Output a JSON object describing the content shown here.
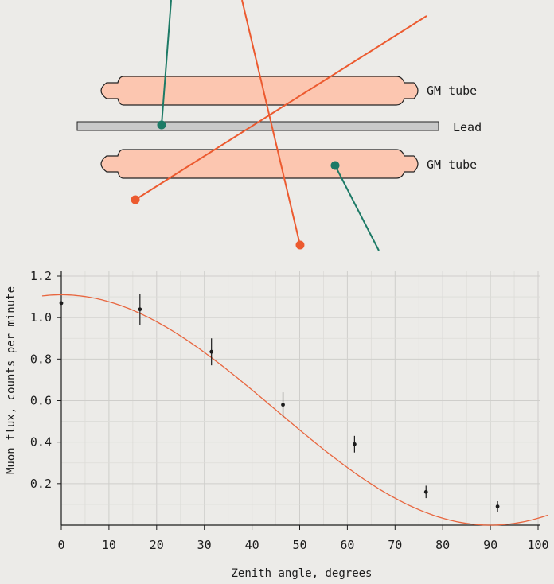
{
  "diagram": {
    "labels": {
      "tube_top": "GM tube",
      "lead": "Lead",
      "tube_bottom": "GM tube"
    },
    "colors": {
      "tube_fill": "#fcc6b0",
      "tube_stroke": "#222222",
      "lead_fill": "#c9c9c9",
      "track_orange": "#ec5a2f",
      "track_green": "#1d7a66"
    }
  },
  "chart_data": {
    "type": "scatter",
    "xlabel": "Zenith angle, degrees",
    "ylabel": "Muon flux, counts per minute",
    "xlim": [
      0,
      102
    ],
    "ylim": [
      0,
      1.25
    ],
    "x_ticks": [
      0,
      10,
      20,
      30,
      40,
      50,
      60,
      70,
      80,
      90,
      100
    ],
    "y_ticks": [
      0.2,
      0.4,
      0.6,
      0.8,
      1.0,
      1.2
    ],
    "y_tick_labels": [
      "0.2",
      "0.4",
      "0.6",
      "0.8",
      "1.0",
      "1.2"
    ],
    "grid": true,
    "series": [
      {
        "kind": "points_with_error_bars",
        "color": "#1c1c1c",
        "x": [
          0,
          16.5,
          31.5,
          46.5,
          61.5,
          76.5,
          91.5
        ],
        "y": [
          1.07,
          1.04,
          0.835,
          0.58,
          0.39,
          0.16,
          0.09
        ],
        "yerr": [
          0.0,
          0.075,
          0.065,
          0.06,
          0.04,
          0.03,
          0.025
        ]
      },
      {
        "kind": "fit_curve",
        "color": "#e8663f",
        "model": "A*cos^2(theta)",
        "A": 1.11,
        "x_range": [
          -4,
          102
        ]
      }
    ]
  }
}
